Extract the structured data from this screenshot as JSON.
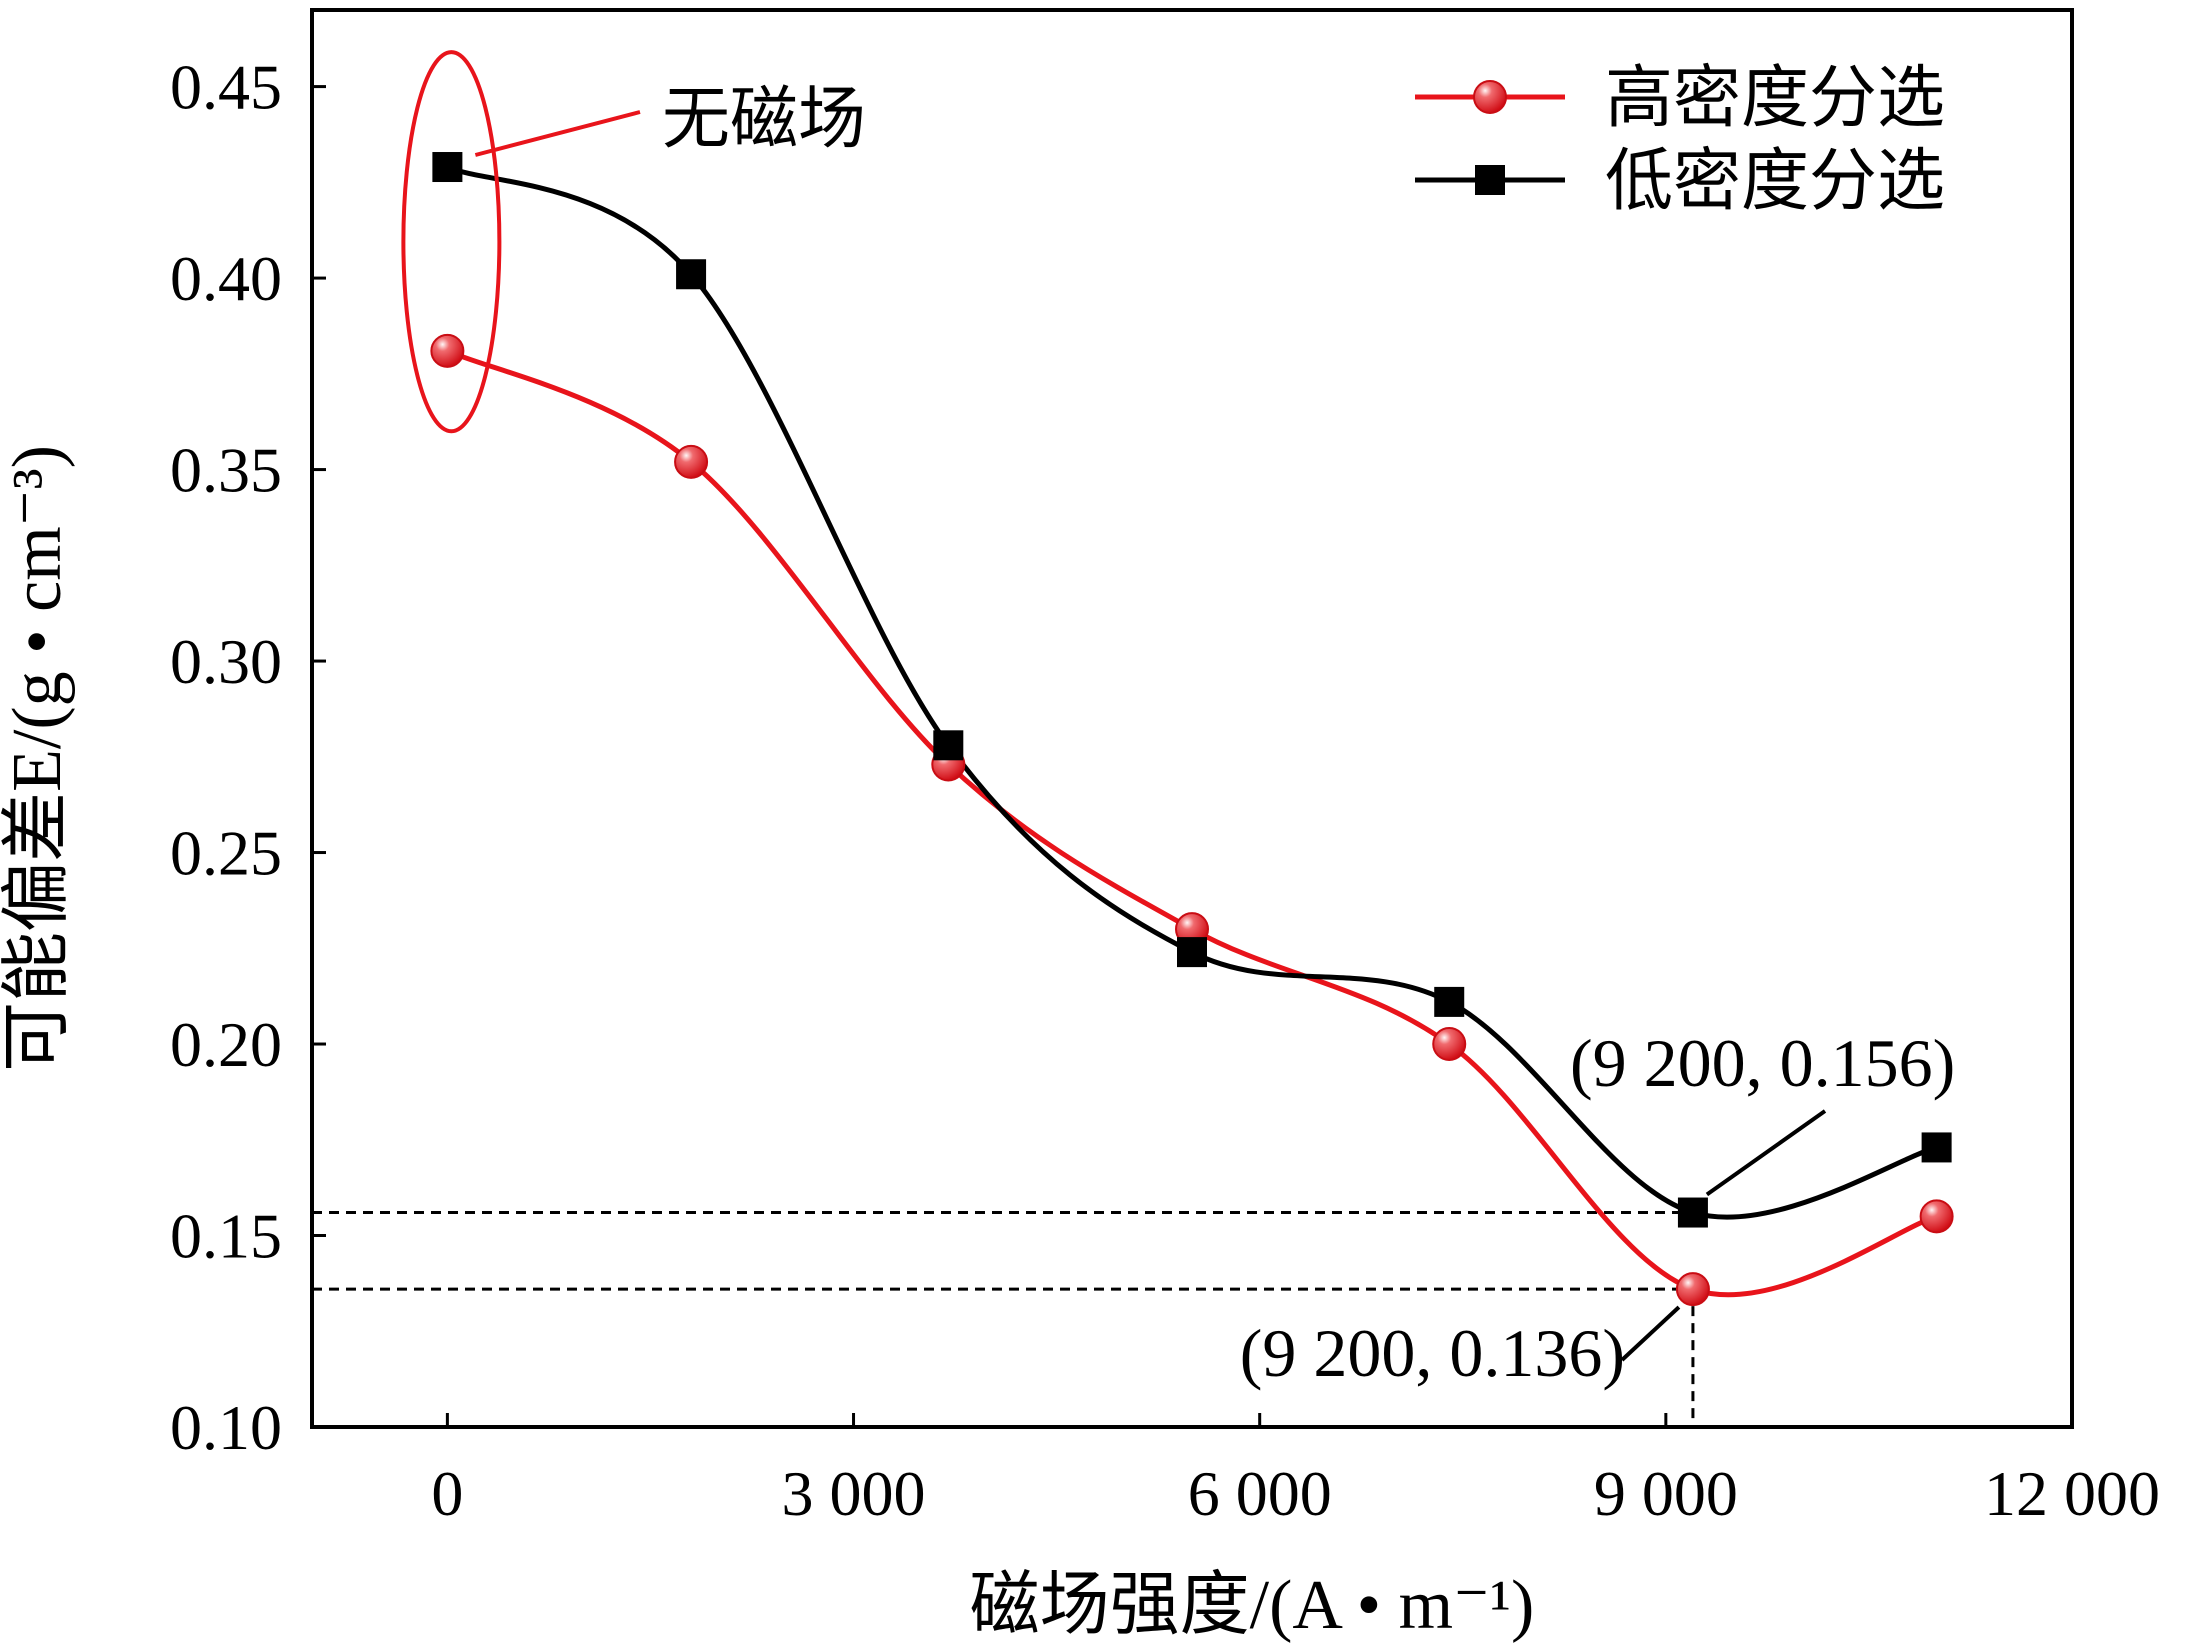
{
  "chart_data": {
    "type": "line",
    "xlabel": "磁场强度/(A • m⁻¹)",
    "ylabel": "可能偏差E/(g • cm⁻³)",
    "xlim": [
      -1000,
      12000
    ],
    "ylim": [
      0.1,
      0.47
    ],
    "x_ticks": [
      0,
      3000,
      6000,
      9000,
      12000
    ],
    "x_tick_labels": [
      "0",
      "3 000",
      "6 000",
      "9 000",
      "12 000"
    ],
    "y_ticks": [
      0.1,
      0.15,
      0.2,
      0.25,
      0.3,
      0.35,
      0.4,
      0.45
    ],
    "y_tick_labels": [
      "0.10",
      "0.15",
      "0.20",
      "0.25",
      "0.30",
      "0.35",
      "0.40",
      "0.45"
    ],
    "grid": false,
    "legend_position": "top-right",
    "series": [
      {
        "name": "高密度分选",
        "color": "#e8141b",
        "marker": "circle",
        "x": [
          0,
          1800,
          3700,
          5500,
          7400,
          9200,
          11000
        ],
        "y": [
          0.381,
          0.352,
          0.273,
          0.23,
          0.2,
          0.136,
          0.155
        ]
      },
      {
        "name": "低密度分选",
        "color": "#000000",
        "marker": "square",
        "x": [
          0,
          1800,
          3700,
          5500,
          7400,
          9200,
          11000
        ],
        "y": [
          0.429,
          0.401,
          0.278,
          0.224,
          0.211,
          0.156,
          0.173
        ]
      }
    ],
    "annotations": {
      "no_field_label": "无磁场",
      "point_low_label": "(9 200, 0.156)",
      "point_high_label": "(9 200, 0.136)",
      "point_low": [
        9200,
        0.156
      ],
      "point_high": [
        9200,
        0.136
      ],
      "no_field_x": 0,
      "no_field_y_range": [
        0.36,
        0.459
      ]
    }
  }
}
